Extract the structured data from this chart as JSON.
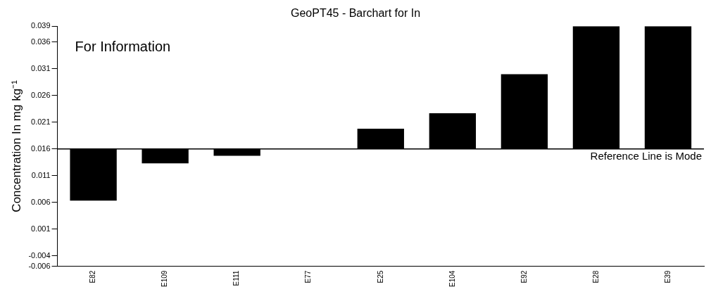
{
  "chart_data": {
    "type": "bar",
    "title": "GeoPT45 - Barchart for In",
    "ylabel": "Concentration In mg kg⁻¹",
    "categories": [
      "E82",
      "E109",
      "E111",
      "E77",
      "E25",
      "E104",
      "E92",
      "E28",
      "E39"
    ],
    "base": [
      0.016,
      0.016,
      0.016,
      null,
      0.016,
      0.016,
      0.016,
      0.016,
      0.016
    ],
    "values": [
      -0.0097,
      -0.0027,
      -0.0013,
      null,
      0.0038,
      0.0067,
      0.014,
      0.023,
      0.023
    ],
    "color": "#000000",
    "ylim": [
      -0.006,
      0.039
    ],
    "yticks": [
      -0.006,
      -0.004,
      0.001,
      0.006,
      0.011,
      0.016,
      0.021,
      0.026,
      0.031,
      0.036,
      0.039
    ],
    "ref_lines": [
      {
        "axis": "y",
        "value": 0.016,
        "label": "Reference Line is Mode",
        "color": "#000000"
      }
    ],
    "annotations": [
      "For Information"
    ],
    "grid": false,
    "legend": false
  }
}
